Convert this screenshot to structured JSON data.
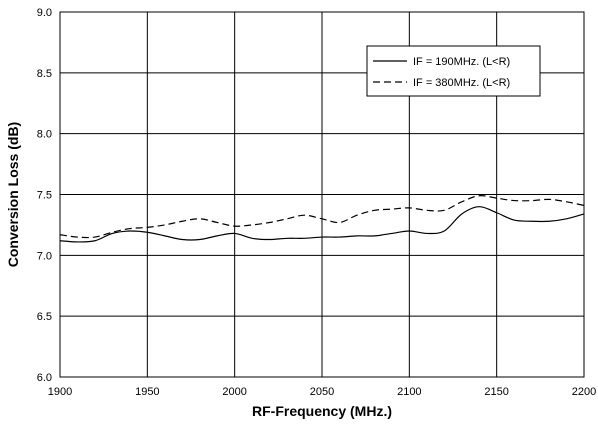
{
  "chart_data": {
    "type": "line",
    "xlabel": "RF-Frequency (MHz.)",
    "ylabel": "Conversion Loss (dB)",
    "xlim": [
      1900,
      2200
    ],
    "ylim": [
      6.0,
      9.0
    ],
    "x_ticks": [
      1900,
      1950,
      2000,
      2050,
      2100,
      2150,
      2200
    ],
    "y_ticks": [
      "6.0",
      "6.5",
      "7.0",
      "7.5",
      "8.0",
      "8.5",
      "9.0"
    ],
    "grid": true,
    "legend_position": "top-right",
    "series": [
      {
        "name": "IF = 190MHz. (L<R)",
        "style": "solid",
        "color": "#000000",
        "x": [
          1900,
          1910,
          1920,
          1930,
          1940,
          1950,
          1960,
          1970,
          1980,
          1990,
          2000,
          2010,
          2020,
          2030,
          2040,
          2050,
          2060,
          2070,
          2080,
          2090,
          2100,
          2110,
          2120,
          2130,
          2140,
          2150,
          2160,
          2170,
          2180,
          2190,
          2200
        ],
        "y": [
          7.12,
          7.11,
          7.12,
          7.18,
          7.2,
          7.19,
          7.16,
          7.13,
          7.13,
          7.16,
          7.18,
          7.14,
          7.13,
          7.14,
          7.14,
          7.15,
          7.15,
          7.16,
          7.16,
          7.18,
          7.2,
          7.18,
          7.2,
          7.34,
          7.4,
          7.35,
          7.29,
          7.28,
          7.28,
          7.3,
          7.34
        ]
      },
      {
        "name": "IF = 380MHz. (L<R)",
        "style": "dashed",
        "color": "#000000",
        "x": [
          1900,
          1910,
          1920,
          1930,
          1940,
          1950,
          1960,
          1970,
          1980,
          1990,
          2000,
          2010,
          2020,
          2030,
          2040,
          2050,
          2060,
          2070,
          2080,
          2090,
          2100,
          2110,
          2120,
          2130,
          2140,
          2150,
          2160,
          2170,
          2180,
          2190,
          2200
        ],
        "y": [
          7.17,
          7.15,
          7.15,
          7.19,
          7.22,
          7.23,
          7.25,
          7.28,
          7.3,
          7.27,
          7.24,
          7.25,
          7.27,
          7.3,
          7.33,
          7.3,
          7.27,
          7.33,
          7.37,
          7.38,
          7.39,
          7.37,
          7.37,
          7.44,
          7.49,
          7.47,
          7.45,
          7.45,
          7.46,
          7.44,
          7.41
        ]
      }
    ]
  }
}
